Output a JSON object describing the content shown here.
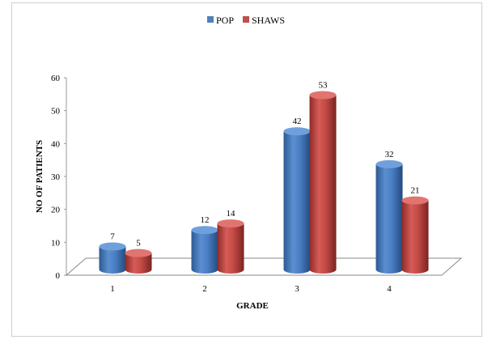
{
  "chart_data": {
    "type": "bar",
    "categories": [
      "1",
      "2",
      "3",
      "4"
    ],
    "series": [
      {
        "name": "POP",
        "values": [
          7,
          12,
          42,
          32
        ],
        "color": "#4f81bd"
      },
      {
        "name": "SHAWS",
        "values": [
          5,
          14,
          53,
          21
        ],
        "color": "#c0504d"
      }
    ],
    "xlabel": "GRADE",
    "ylabel": "NO OF PATIENTS",
    "ylim": [
      0,
      60
    ],
    "yticks": [
      "0",
      "10",
      "20",
      "30",
      "40",
      "50",
      "60"
    ],
    "legend_position": "top",
    "grid": false,
    "style": "3d-cylinder"
  }
}
